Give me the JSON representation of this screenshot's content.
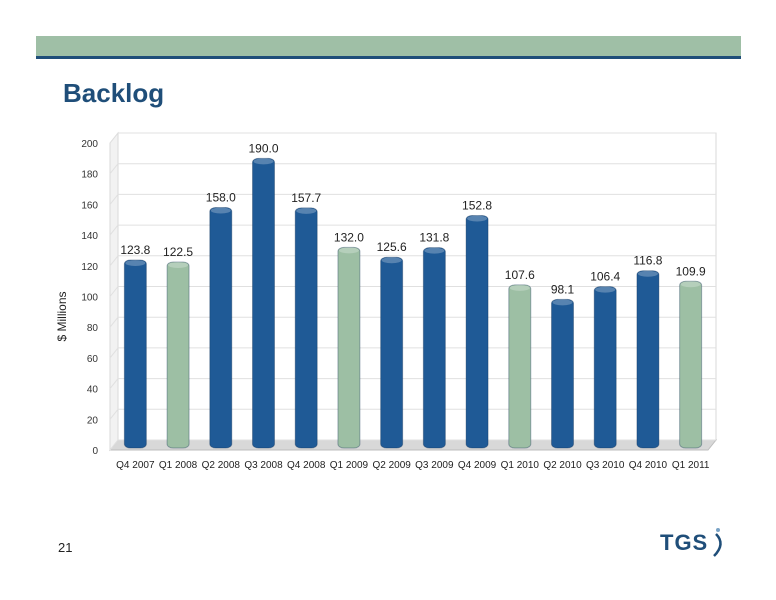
{
  "slide": {
    "title": "Backlog",
    "page_number": "21",
    "logo_text": "TGS",
    "colors": {
      "header_band": "#9fbfa6",
      "header_line": "#1f4e79",
      "title": "#1f4e79"
    }
  },
  "chart_data": {
    "type": "bar",
    "title": "",
    "xlabel": "",
    "ylabel": "$ Millions",
    "ylim": [
      0,
      200
    ],
    "yticks": [
      0,
      20,
      40,
      60,
      80,
      100,
      120,
      140,
      160,
      180,
      200
    ],
    "grid": true,
    "categories": [
      "Q4 2007",
      "Q1 2008",
      "Q2 2008",
      "Q3 2008",
      "Q4 2008",
      "Q1 2009",
      "Q2 2009",
      "Q3 2009",
      "Q4 2009",
      "Q1 2010",
      "Q2 2010",
      "Q3 2010",
      "Q4 2010",
      "Q1 2011"
    ],
    "values": [
      123.8,
      122.5,
      158.0,
      190.0,
      157.7,
      132.0,
      125.6,
      131.8,
      152.8,
      107.6,
      98.1,
      106.4,
      116.8,
      109.9
    ],
    "labels": [
      "123.8",
      "122.5",
      "158.0",
      "190.0",
      "157.7",
      "132.0",
      "125.6",
      "131.8",
      "152.8",
      "107.6",
      "98.1",
      "106.4",
      "116.8",
      "109.9"
    ],
    "highlight": [
      false,
      true,
      false,
      false,
      false,
      true,
      false,
      false,
      false,
      true,
      false,
      false,
      false,
      true
    ],
    "colors": {
      "bar": "#1f5a96",
      "bar_highlight": "#9dbfa4"
    }
  }
}
